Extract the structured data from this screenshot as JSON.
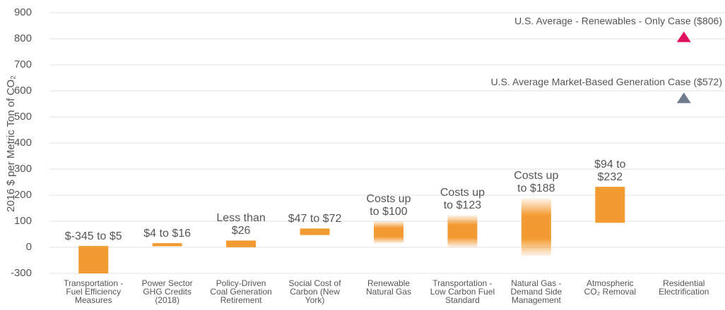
{
  "chart_data": {
    "type": "floating-bar",
    "y_label": "2016 $ per Metric Ton of CO₂",
    "categories": [
      "Transportation -\nFuel Efficiency\nMeasures",
      "Power Sector\nGHG Credits\n(2018)",
      "Policy-Driven\nCoal Generation\nRetirement",
      "Social Cost of\nCarbon (New\nYork)",
      "Renewable\nNatural Gas",
      "Transportation -\nLow Carbon Fuel\nStandard",
      "Natural Gas -\nDemand Side\nManagement",
      "Atmospheric\nCO₂ Removal",
      "Residential\nElectrification"
    ],
    "low": [
      -345,
      4,
      0,
      47,
      15,
      0,
      -100,
      94,
      null
    ],
    "high": [
      5,
      16,
      26,
      72,
      100,
      123,
      188,
      232,
      null
    ],
    "value_labels": [
      "$-345 to $5",
      "$4 to $16",
      "Less than\n$26",
      "$47 to $72",
      "Costs up\nto $100",
      "Costs up\nto $123",
      "Costs up\nto $188",
      "$94 to\n$232",
      null
    ],
    "fade": [
      false,
      false,
      false,
      false,
      true,
      true,
      true,
      false,
      false
    ],
    "color": "#f39b33",
    "markers": [
      {
        "label": "U.S. Average - Renewables - Only Case ($806)",
        "value": 806,
        "color": "#e0115f",
        "category": 8
      },
      {
        "label": "U.S. Average Market-Based Generation Case ($572)",
        "value": 572,
        "color": "#6d7b8a",
        "category": 8
      }
    ],
    "ylim": [
      -300,
      900
    ],
    "yticks": [
      -300,
      0,
      100,
      200,
      300,
      400,
      500,
      600,
      700,
      800,
      900
    ],
    "grid": true
  }
}
